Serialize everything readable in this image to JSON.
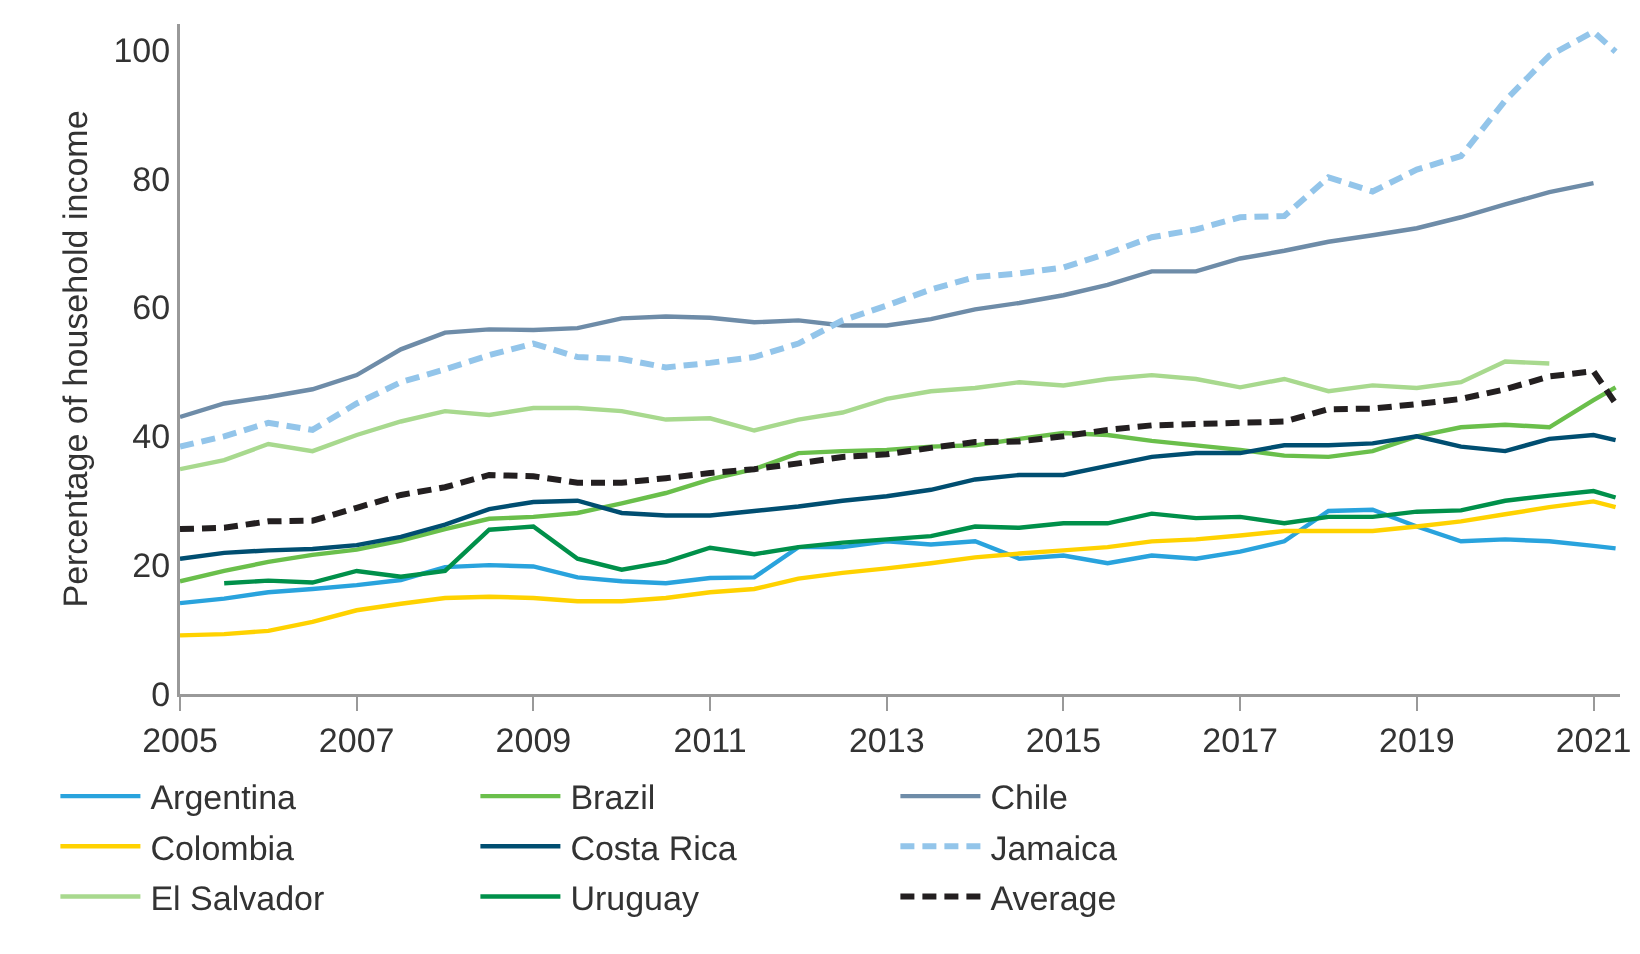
{
  "chart_data": {
    "type": "line",
    "ylabel": "Percentage of household income",
    "x": [
      2005,
      2005.5,
      2006,
      2006.5,
      2007,
      2007.5,
      2008,
      2008.5,
      2009,
      2009.5,
      2010,
      2010.5,
      2011,
      2011.5,
      2012,
      2012.5,
      2013,
      2013.5,
      2014,
      2014.5,
      2015,
      2015.5,
      2016,
      2016.5,
      2017,
      2017.5,
      2018,
      2018.5,
      2019,
      2019.5,
      2020,
      2020.5,
      2021,
      2021.25
    ],
    "series": [
      {
        "name": "Argentina",
        "color": "#29a3dd",
        "values": [
          14.1,
          14.8,
          15.8,
          16.3,
          16.9,
          17.7,
          19.7,
          20,
          19.8,
          18.1,
          17.5,
          17.2,
          18,
          18.1,
          22.8,
          22.8,
          23.7,
          23.2,
          23.7,
          21,
          21.5,
          20.3,
          21.5,
          21,
          22.1,
          23.7,
          28.4,
          28.6,
          26,
          23.7,
          24,
          23.7,
          23,
          22.6
        ]
      },
      {
        "name": "Brazil",
        "color": "#6abf4b",
        "values": [
          17.5,
          19.1,
          20.5,
          21.6,
          22.4,
          23.8,
          25.6,
          27.2,
          27.5,
          28.1,
          29.6,
          31.2,
          33.3,
          34.9,
          37.4,
          37.7,
          37.9,
          38.4,
          38.6,
          39.6,
          40.5,
          40.2,
          39.3,
          38.6,
          37.9,
          37,
          36.8,
          37.7,
          40,
          41.4,
          41.8,
          41.4,
          45.6,
          47.6
        ]
      },
      {
        "name": "Chile",
        "color": "#6e8ca8",
        "values": [
          43,
          45.1,
          46.1,
          47.3,
          49.5,
          53.5,
          56.1,
          56.6,
          56.5,
          56.8,
          58.3,
          58.6,
          58.4,
          57.7,
          58,
          57.2,
          57.2,
          58.2,
          59.7,
          60.7,
          61.9,
          63.5,
          65.6,
          65.6,
          67.6,
          68.8,
          70.2,
          71.2,
          72.3,
          74,
          76,
          77.9,
          79.3,
          null
        ]
      },
      {
        "name": "Colombia",
        "color": "#ffd200",
        "values": [
          9.1,
          9.3,
          9.8,
          11.2,
          13,
          14,
          14.9,
          15.1,
          14.9,
          14.4,
          14.4,
          14.9,
          15.8,
          16.3,
          17.9,
          18.8,
          19.5,
          20.3,
          21.2,
          21.8,
          22.3,
          22.8,
          23.7,
          24,
          24.6,
          25.3,
          25.3,
          25.3,
          26,
          26.8,
          27.9,
          29,
          29.9,
          29
        ]
      },
      {
        "name": "Costa Rica",
        "color": "#004e71",
        "values": [
          21,
          21.9,
          22.3,
          22.5,
          23.1,
          24.4,
          26.3,
          28.7,
          29.8,
          30,
          28.1,
          27.7,
          27.7,
          28.4,
          29.1,
          30,
          30.7,
          31.7,
          33.3,
          34,
          34,
          35.4,
          36.8,
          37.4,
          37.4,
          38.6,
          38.6,
          38.9,
          40,
          38.4,
          37.7,
          39.6,
          40.2,
          39.4
        ]
      },
      {
        "name": "Jamaica",
        "color": "#93c5ea",
        "line_style": "dashed",
        "values": [
          38.4,
          40,
          42.1,
          41,
          45.1,
          48.4,
          50.4,
          52.6,
          54.4,
          52.3,
          52,
          50.7,
          51.4,
          52.3,
          54.4,
          58,
          60.3,
          62.8,
          64.7,
          65.3,
          66.2,
          68.4,
          70.9,
          72.1,
          74,
          74.2,
          80.2,
          78,
          81.4,
          83.5,
          92.1,
          99.1,
          102.8,
          99.7
        ]
      },
      {
        "name": "El Salvador",
        "color": "#a8d98e",
        "values": [
          34.9,
          36.3,
          38.8,
          37.7,
          40.2,
          42.3,
          43.9,
          43.3,
          44.4,
          44.4,
          43.9,
          42.6,
          42.8,
          40.9,
          42.6,
          43.7,
          45.8,
          47,
          47.5,
          48.4,
          47.9,
          48.9,
          49.5,
          48.9,
          47.6,
          48.9,
          47,
          47.9,
          47.5,
          48.4,
          51.6,
          51.3,
          null,
          null
        ]
      },
      {
        "name": "Uruguay",
        "color": "#00904a",
        "values": [
          null,
          17.2,
          17.6,
          17.3,
          19.1,
          18.2,
          19.1,
          25.5,
          26,
          21,
          19.3,
          20.5,
          22.7,
          21.7,
          22.8,
          23.5,
          24,
          24.5,
          26,
          25.8,
          26.5,
          26.5,
          28,
          27.3,
          27.5,
          26.5,
          27.5,
          27.5,
          28.3,
          28.5,
          30,
          30.8,
          31.5,
          30.5
        ]
      },
      {
        "name": "Average",
        "color": "#231f20",
        "line_style": "dashed",
        "values": [
          25.6,
          25.8,
          26.8,
          26.9,
          28.9,
          30.9,
          32.1,
          34,
          33.8,
          32.8,
          32.8,
          33.5,
          34.3,
          34.9,
          35.8,
          36.8,
          37.2,
          38.2,
          39.1,
          39.2,
          40,
          41,
          41.7,
          41.9,
          42.1,
          42.3,
          44.2,
          44.3,
          45,
          45.8,
          47.3,
          49.3,
          50.1,
          45.1
        ]
      }
    ],
    "xlim": [
      2005,
      2021.3
    ],
    "ylim": [
      0,
      104
    ],
    "xticks": [
      2005,
      2007,
      2009,
      2011,
      2013,
      2015,
      2017,
      2019,
      2021
    ],
    "yticks": [
      0,
      20,
      40,
      60,
      80,
      100
    ],
    "grid": false,
    "legend": "bottom",
    "marker": "none"
  }
}
